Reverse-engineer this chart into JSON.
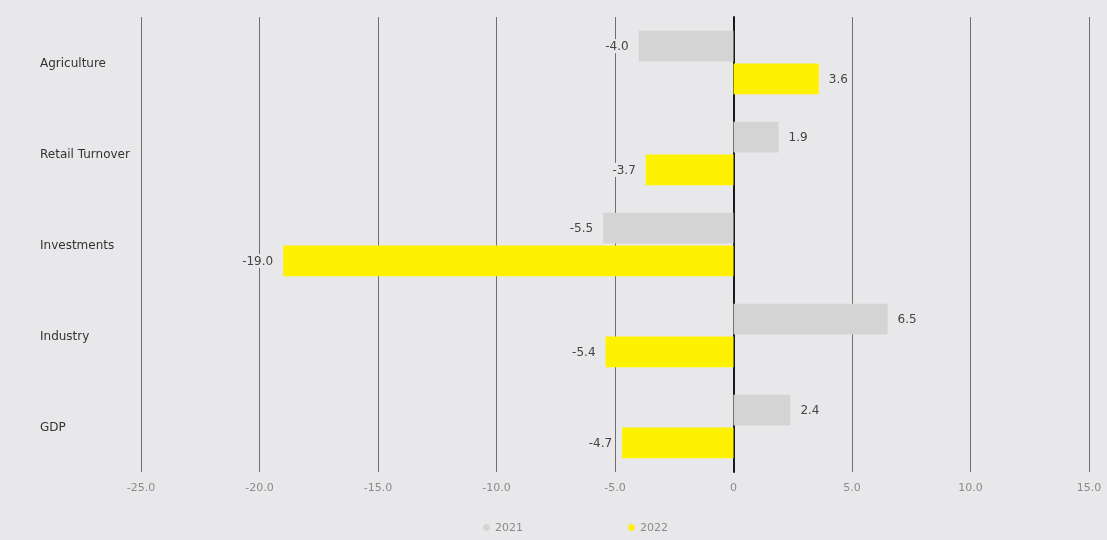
{
  "chart_data": {
    "type": "bar",
    "orientation": "horizontal",
    "categories": [
      "Agriculture",
      "Retail Turnover",
      "Investments",
      "Industry",
      "GDP"
    ],
    "series": [
      {
        "name": "2021",
        "color": "#d4d4d4",
        "values": [
          -4.0,
          1.9,
          -5.5,
          6.5,
          2.4
        ],
        "value_labels": [
          "-4.0",
          "1.9",
          "-5.5",
          "6.5",
          "2.4"
        ]
      },
      {
        "name": "2022",
        "color": "#fff200",
        "values": [
          3.6,
          -3.7,
          -19.0,
          -5.4,
          -4.7
        ],
        "value_labels": [
          "3.6",
          "-3.7",
          "-19.0",
          "-5.4",
          "-4.7"
        ]
      }
    ],
    "xlim": [
      -25,
      15
    ],
    "xticks": [
      {
        "value": -25,
        "label": "-25.0"
      },
      {
        "value": -20,
        "label": "-20.0"
      },
      {
        "value": -15,
        "label": "-15.0"
      },
      {
        "value": -10,
        "label": "-10.0"
      },
      {
        "value": -5,
        "label": "-5.0"
      },
      0,
      {
        "value": 5,
        "label": "5.0"
      },
      {
        "value": 10,
        "label": "10.0"
      },
      {
        "value": 15,
        "label": "15.0"
      }
    ],
    "grid": "x",
    "legend": "bottom"
  }
}
